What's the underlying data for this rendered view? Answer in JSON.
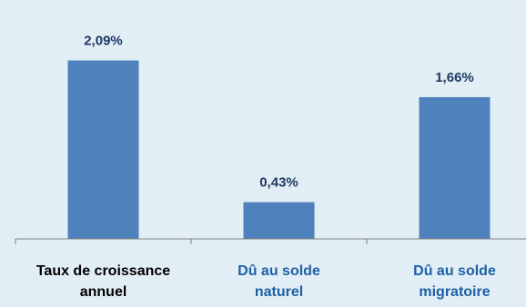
{
  "colors": {
    "background": "#e1eef5",
    "bar": "#4f81bd",
    "value_label": "#1f3864",
    "axis": "#808080",
    "category_label_1": "#000000",
    "category_label_2": "#1f5fa6",
    "category_label_3": "#1f5fa6"
  },
  "chart_data": {
    "type": "bar",
    "categories": [
      "Taux de croissance annuel",
      "Dû au solde naturel",
      "Dû au solde migratoire"
    ],
    "category_lines": [
      [
        "Taux de croissance",
        "annuel"
      ],
      [
        "Dû au solde",
        "naturel"
      ],
      [
        "Dû au solde",
        "migratoire"
      ]
    ],
    "values": [
      2.09,
      0.43,
      1.66
    ],
    "data_labels": [
      "2,09%",
      "0,43%",
      "1,66%"
    ],
    "ylim": [
      0,
      2.5
    ],
    "grid": false,
    "legend": "none"
  }
}
